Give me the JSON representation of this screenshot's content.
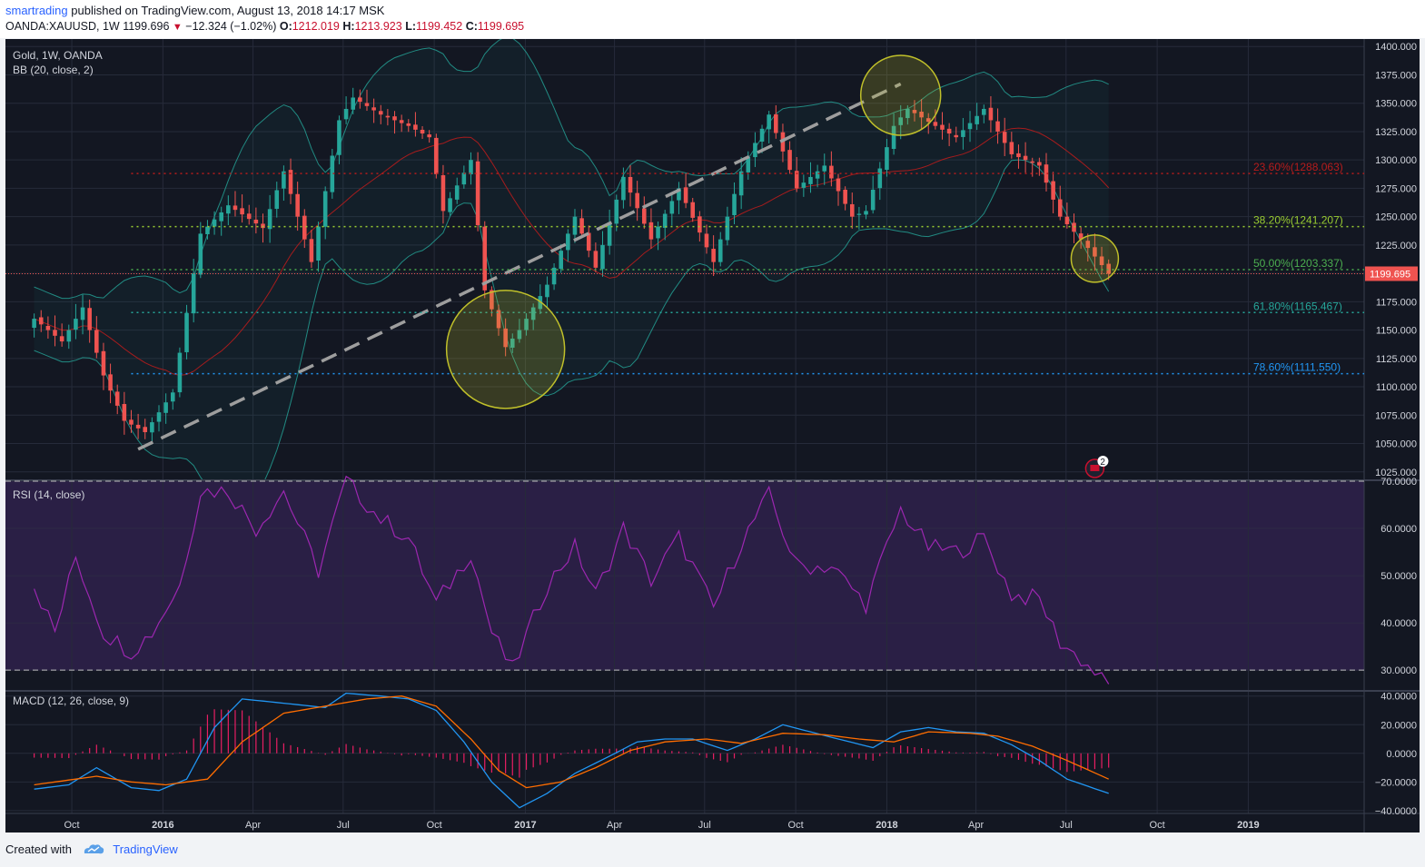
{
  "header": {
    "author": "smartrading",
    "published_text": "published on TradingView.com, August 13, 2018 14:17 MSK",
    "symbol": "OANDA:XAUUSD, 1W",
    "price": "1199.696",
    "change": "−12.324 (−1.02%)",
    "o_label": "O:",
    "o_value": "1212.019",
    "h_label": "H:",
    "h_value": "1213.923",
    "l_label": "L:",
    "l_value": "1199.452",
    "c_label": "C:",
    "c_value": "1199.695"
  },
  "footer": {
    "created_with": "Created with",
    "brand": "TradingView"
  },
  "colors": {
    "background": "#131722",
    "up": "#26a69a",
    "down": "#ef5350",
    "bb_band": "#26a69a",
    "bb_basis": "#b71c1c",
    "rsi": "#9c27b0",
    "rsi_zone": "#2a1f45",
    "macd": "#2196f3",
    "signal": "#ff6d00",
    "hist": "#e91e63",
    "circle": "#c0c02a"
  },
  "chart_data": [
    {
      "type": "line",
      "title": "Gold, 1W, OANDA",
      "indicator": "BB (20, close, 2)",
      "series_kind": "candlestick (weekly)",
      "x_axis_labels": [
        "Oct",
        "2016",
        "Apr",
        "Jul",
        "Oct",
        "2017",
        "Apr",
        "Jul",
        "Oct",
        "2018",
        "Apr",
        "Jul",
        "Oct",
        "2019"
      ],
      "y_ticks": [
        1025,
        1050,
        1075,
        1100,
        1125,
        1150,
        1175,
        1200,
        1225,
        1250,
        1275,
        1300,
        1325,
        1350,
        1375,
        1400
      ],
      "ylim": [
        1020,
        1405
      ],
      "last_price_label": "1199.695",
      "close_path": [
        [
          "2015-08-24",
          1160
        ],
        [
          "2015-09-21",
          1140
        ],
        [
          "2015-10-12",
          1170
        ],
        [
          "2015-11-02",
          1110
        ],
        [
          "2015-11-23",
          1070
        ],
        [
          "2015-12-14",
          1060
        ],
        [
          "2016-01-11",
          1095
        ],
        [
          "2016-02-08",
          1235
        ],
        [
          "2016-03-07",
          1260
        ],
        [
          "2016-04-11",
          1240
        ],
        [
          "2016-05-02",
          1290
        ],
        [
          "2016-05-30",
          1210
        ],
        [
          "2016-06-27",
          1335
        ],
        [
          "2016-07-11",
          1355
        ],
        [
          "2016-08-08",
          1340
        ],
        [
          "2016-09-05",
          1330
        ],
        [
          "2016-09-26",
          1320
        ],
        [
          "2016-10-10",
          1255
        ],
        [
          "2016-11-07",
          1300
        ],
        [
          "2016-11-21",
          1185
        ],
        [
          "2016-12-12",
          1135
        ],
        [
          "2016-12-26",
          1150
        ],
        [
          "2017-01-23",
          1190
        ],
        [
          "2017-02-20",
          1250
        ],
        [
          "2017-03-13",
          1205
        ],
        [
          "2017-04-10",
          1285
        ],
        [
          "2017-05-08",
          1230
        ],
        [
          "2017-06-05",
          1275
        ],
        [
          "2017-07-10",
          1210
        ],
        [
          "2017-08-07",
          1290
        ],
        [
          "2017-09-04",
          1340
        ],
        [
          "2017-10-02",
          1275
        ],
        [
          "2017-10-30",
          1295
        ],
        [
          "2017-11-27",
          1250
        ],
        [
          "2017-12-11",
          1255
        ],
        [
          "2018-01-08",
          1330
        ],
        [
          "2018-01-22",
          1345
        ],
        [
          "2018-02-19",
          1330
        ],
        [
          "2018-03-12",
          1320
        ],
        [
          "2018-04-09",
          1345
        ],
        [
          "2018-05-07",
          1305
        ],
        [
          "2018-06-04",
          1295
        ],
        [
          "2018-06-25",
          1250
        ],
        [
          "2018-07-16",
          1230
        ],
        [
          "2018-08-13",
          1199.7
        ]
      ],
      "fibonacci": [
        {
          "label": "23.60%(1288.063)",
          "value": 1288.063,
          "color": "#b71c1c"
        },
        {
          "label": "38.20%(1241.207)",
          "value": 1241.207,
          "color": "#9acd32"
        },
        {
          "label": "50.00%(1203.337)",
          "value": 1203.337,
          "color": "#4caf50"
        },
        {
          "label": "61.80%(1165.467)",
          "value": 1165.467,
          "color": "#26a69a"
        },
        {
          "label": "78.60%(1111.550)",
          "value": 1111.55,
          "color": "#2196f3"
        }
      ],
      "trendline": [
        [
          "2015-12-07",
          1045
        ],
        [
          "2018-01-15",
          1367
        ]
      ],
      "annotations": [
        "circle around 2016-12 low",
        "circle around 2018-01 high",
        "circle around 2018-08 price"
      ],
      "events_badge": "2",
      "grid": true
    },
    {
      "type": "line",
      "title": "RSI (14, close)",
      "y_ticks": [
        30,
        40,
        50,
        60,
        70
      ],
      "ylim": [
        26,
        70
      ],
      "overbought": 70,
      "oversold": 30,
      "values": [
        [
          "2015-08-24",
          48
        ],
        [
          "2015-09-14",
          38
        ],
        [
          "2015-10-05",
          54
        ],
        [
          "2015-11-02",
          38
        ],
        [
          "2015-11-30",
          34
        ],
        [
          "2015-12-21",
          38
        ],
        [
          "2016-01-18",
          48
        ],
        [
          "2016-02-08",
          68
        ],
        [
          "2016-03-07",
          68
        ],
        [
          "2016-04-04",
          60
        ],
        [
          "2016-05-02",
          68
        ],
        [
          "2016-06-06",
          51
        ],
        [
          "2016-07-04",
          70
        ],
        [
          "2016-08-08",
          62
        ],
        [
          "2016-09-05",
          58
        ],
        [
          "2016-10-03",
          44
        ],
        [
          "2016-11-07",
          55
        ],
        [
          "2016-11-28",
          38
        ],
        [
          "2016-12-19",
          30
        ],
        [
          "2017-01-23",
          48
        ],
        [
          "2017-02-20",
          56
        ],
        [
          "2017-03-13",
          46
        ],
        [
          "2017-04-10",
          60
        ],
        [
          "2017-05-08",
          49
        ],
        [
          "2017-06-05",
          58
        ],
        [
          "2017-07-10",
          43
        ],
        [
          "2017-08-07",
          57
        ],
        [
          "2017-09-04",
          67
        ],
        [
          "2017-10-02",
          52
        ],
        [
          "2017-11-06",
          52
        ],
        [
          "2017-12-11",
          44
        ],
        [
          "2018-01-15",
          64
        ],
        [
          "2018-02-12",
          56
        ],
        [
          "2018-03-12",
          55
        ],
        [
          "2018-04-09",
          58
        ],
        [
          "2018-05-07",
          46
        ],
        [
          "2018-06-04",
          45
        ],
        [
          "2018-06-25",
          36
        ],
        [
          "2018-07-23",
          31
        ],
        [
          "2018-08-13",
          26.5
        ]
      ],
      "grid": true
    },
    {
      "type": "line",
      "title": "MACD (12, 26, close, 9)",
      "y_ticks": [
        -40,
        -20,
        0,
        20,
        40
      ],
      "ylim": [
        -42,
        43
      ],
      "series": [
        {
          "name": "MACD",
          "values": [
            [
              "2015-08-24",
              -25
            ],
            [
              "2015-09-28",
              -22
            ],
            [
              "2015-10-26",
              -10
            ],
            [
              "2015-11-30",
              -24
            ],
            [
              "2015-12-28",
              -26
            ],
            [
              "2016-01-25",
              -18
            ],
            [
              "2016-02-22",
              18
            ],
            [
              "2016-03-21",
              38
            ],
            [
              "2016-05-02",
              35
            ],
            [
              "2016-06-13",
              32
            ],
            [
              "2016-07-04",
              42
            ],
            [
              "2016-08-08",
              40
            ],
            [
              "2016-09-05",
              38
            ],
            [
              "2016-10-03",
              30
            ],
            [
              "2016-10-31",
              8
            ],
            [
              "2016-11-28",
              -20
            ],
            [
              "2016-12-26",
              -38
            ],
            [
              "2017-01-23",
              -28
            ],
            [
              "2017-02-20",
              -14
            ],
            [
              "2017-03-27",
              -2
            ],
            [
              "2017-04-24",
              8
            ],
            [
              "2017-05-22",
              10
            ],
            [
              "2017-06-19",
              10
            ],
            [
              "2017-07-24",
              2
            ],
            [
              "2017-08-21",
              10
            ],
            [
              "2017-09-18",
              20
            ],
            [
              "2017-10-16",
              15
            ],
            [
              "2017-11-13",
              10
            ],
            [
              "2017-12-18",
              4
            ],
            [
              "2018-01-15",
              15
            ],
            [
              "2018-02-12",
              18
            ],
            [
              "2018-03-12",
              15
            ],
            [
              "2018-04-09",
              14
            ],
            [
              "2018-05-07",
              6
            ],
            [
              "2018-06-04",
              -5
            ],
            [
              "2018-07-02",
              -18
            ],
            [
              "2018-08-13",
              -28
            ]
          ]
        },
        {
          "name": "Signal",
          "values": [
            [
              "2015-08-24",
              -22
            ],
            [
              "2015-10-26",
              -16
            ],
            [
              "2015-11-30",
              -20
            ],
            [
              "2016-01-04",
              -22
            ],
            [
              "2016-02-15",
              -18
            ],
            [
              "2016-03-21",
              8
            ],
            [
              "2016-05-02",
              28
            ],
            [
              "2016-06-13",
              33
            ],
            [
              "2016-07-25",
              38
            ],
            [
              "2016-08-29",
              40
            ],
            [
              "2016-10-03",
              33
            ],
            [
              "2016-11-07",
              10
            ],
            [
              "2016-12-05",
              -12
            ],
            [
              "2017-01-02",
              -24
            ],
            [
              "2017-02-06",
              -20
            ],
            [
              "2017-03-13",
              -10
            ],
            [
              "2017-04-17",
              2
            ],
            [
              "2017-05-22",
              8
            ],
            [
              "2017-07-03",
              10
            ],
            [
              "2017-08-07",
              7
            ],
            [
              "2017-09-18",
              14
            ],
            [
              "2017-10-30",
              13
            ],
            [
              "2017-12-04",
              10
            ],
            [
              "2018-01-08",
              8
            ],
            [
              "2018-02-12",
              15
            ],
            [
              "2018-03-26",
              14
            ],
            [
              "2018-04-23",
              12
            ],
            [
              "2018-05-28",
              5
            ],
            [
              "2018-07-02",
              -5
            ],
            [
              "2018-08-13",
              -18
            ]
          ]
        }
      ],
      "histogram_note": "MACD minus Signal, drawn as red bars",
      "grid": true
    }
  ]
}
